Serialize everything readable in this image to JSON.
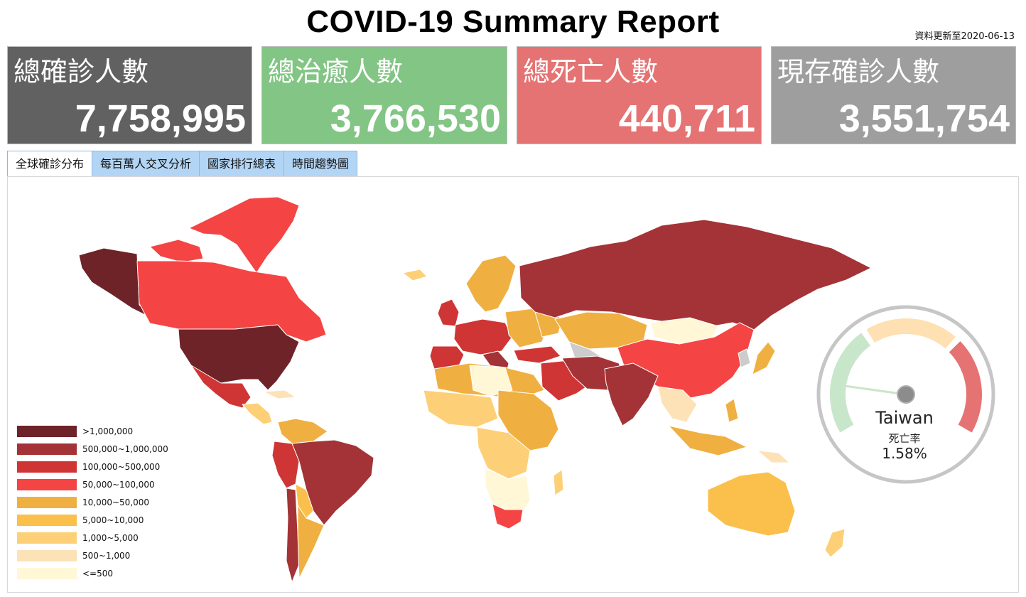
{
  "header": {
    "title": "COVID-19 Summary Report",
    "updated": "資料更新至2020-06-13"
  },
  "cards": [
    {
      "label": "總確診人數",
      "value": "7,758,995",
      "color": "#616161"
    },
    {
      "label": "總治癒人數",
      "value": "3,766,530",
      "color": "#82c584"
    },
    {
      "label": "總死亡人數",
      "value": "440,711",
      "color": "#e57373"
    },
    {
      "label": "現存確診人數",
      "value": "3,551,754",
      "color": "#9e9e9e"
    }
  ],
  "tabs": [
    {
      "label": "全球確診分布",
      "active": true
    },
    {
      "label": "每百萬人交叉分析",
      "active": false
    },
    {
      "label": "國家排行總表",
      "active": false
    },
    {
      "label": "時間趨勢圖",
      "active": false
    }
  ],
  "legend": [
    {
      "label": ">1,000,000",
      "color": "#6e2328"
    },
    {
      "label": "500,000~1,000,000",
      "color": "#a33336"
    },
    {
      "label": "100,000~500,000",
      "color": "#cf3535"
    },
    {
      "label": "50,000~100,000",
      "color": "#f44444"
    },
    {
      "label": "10,000~50,000",
      "color": "#efb041"
    },
    {
      "label": "5,000~10,000",
      "color": "#fbbf4c"
    },
    {
      "label": "1,000~5,000",
      "color": "#fdd078"
    },
    {
      "label": "500~1,000",
      "color": "#fde2b8"
    },
    {
      "label": "<=500",
      "color": "#fff7d6"
    }
  ],
  "gauge": {
    "country": "Taiwan",
    "metric": "死亡率",
    "value": "1.58%",
    "rate": 1.58,
    "zone_colors": [
      "#c8e6c9",
      "#ffe0b2",
      "#e57373"
    ]
  }
}
